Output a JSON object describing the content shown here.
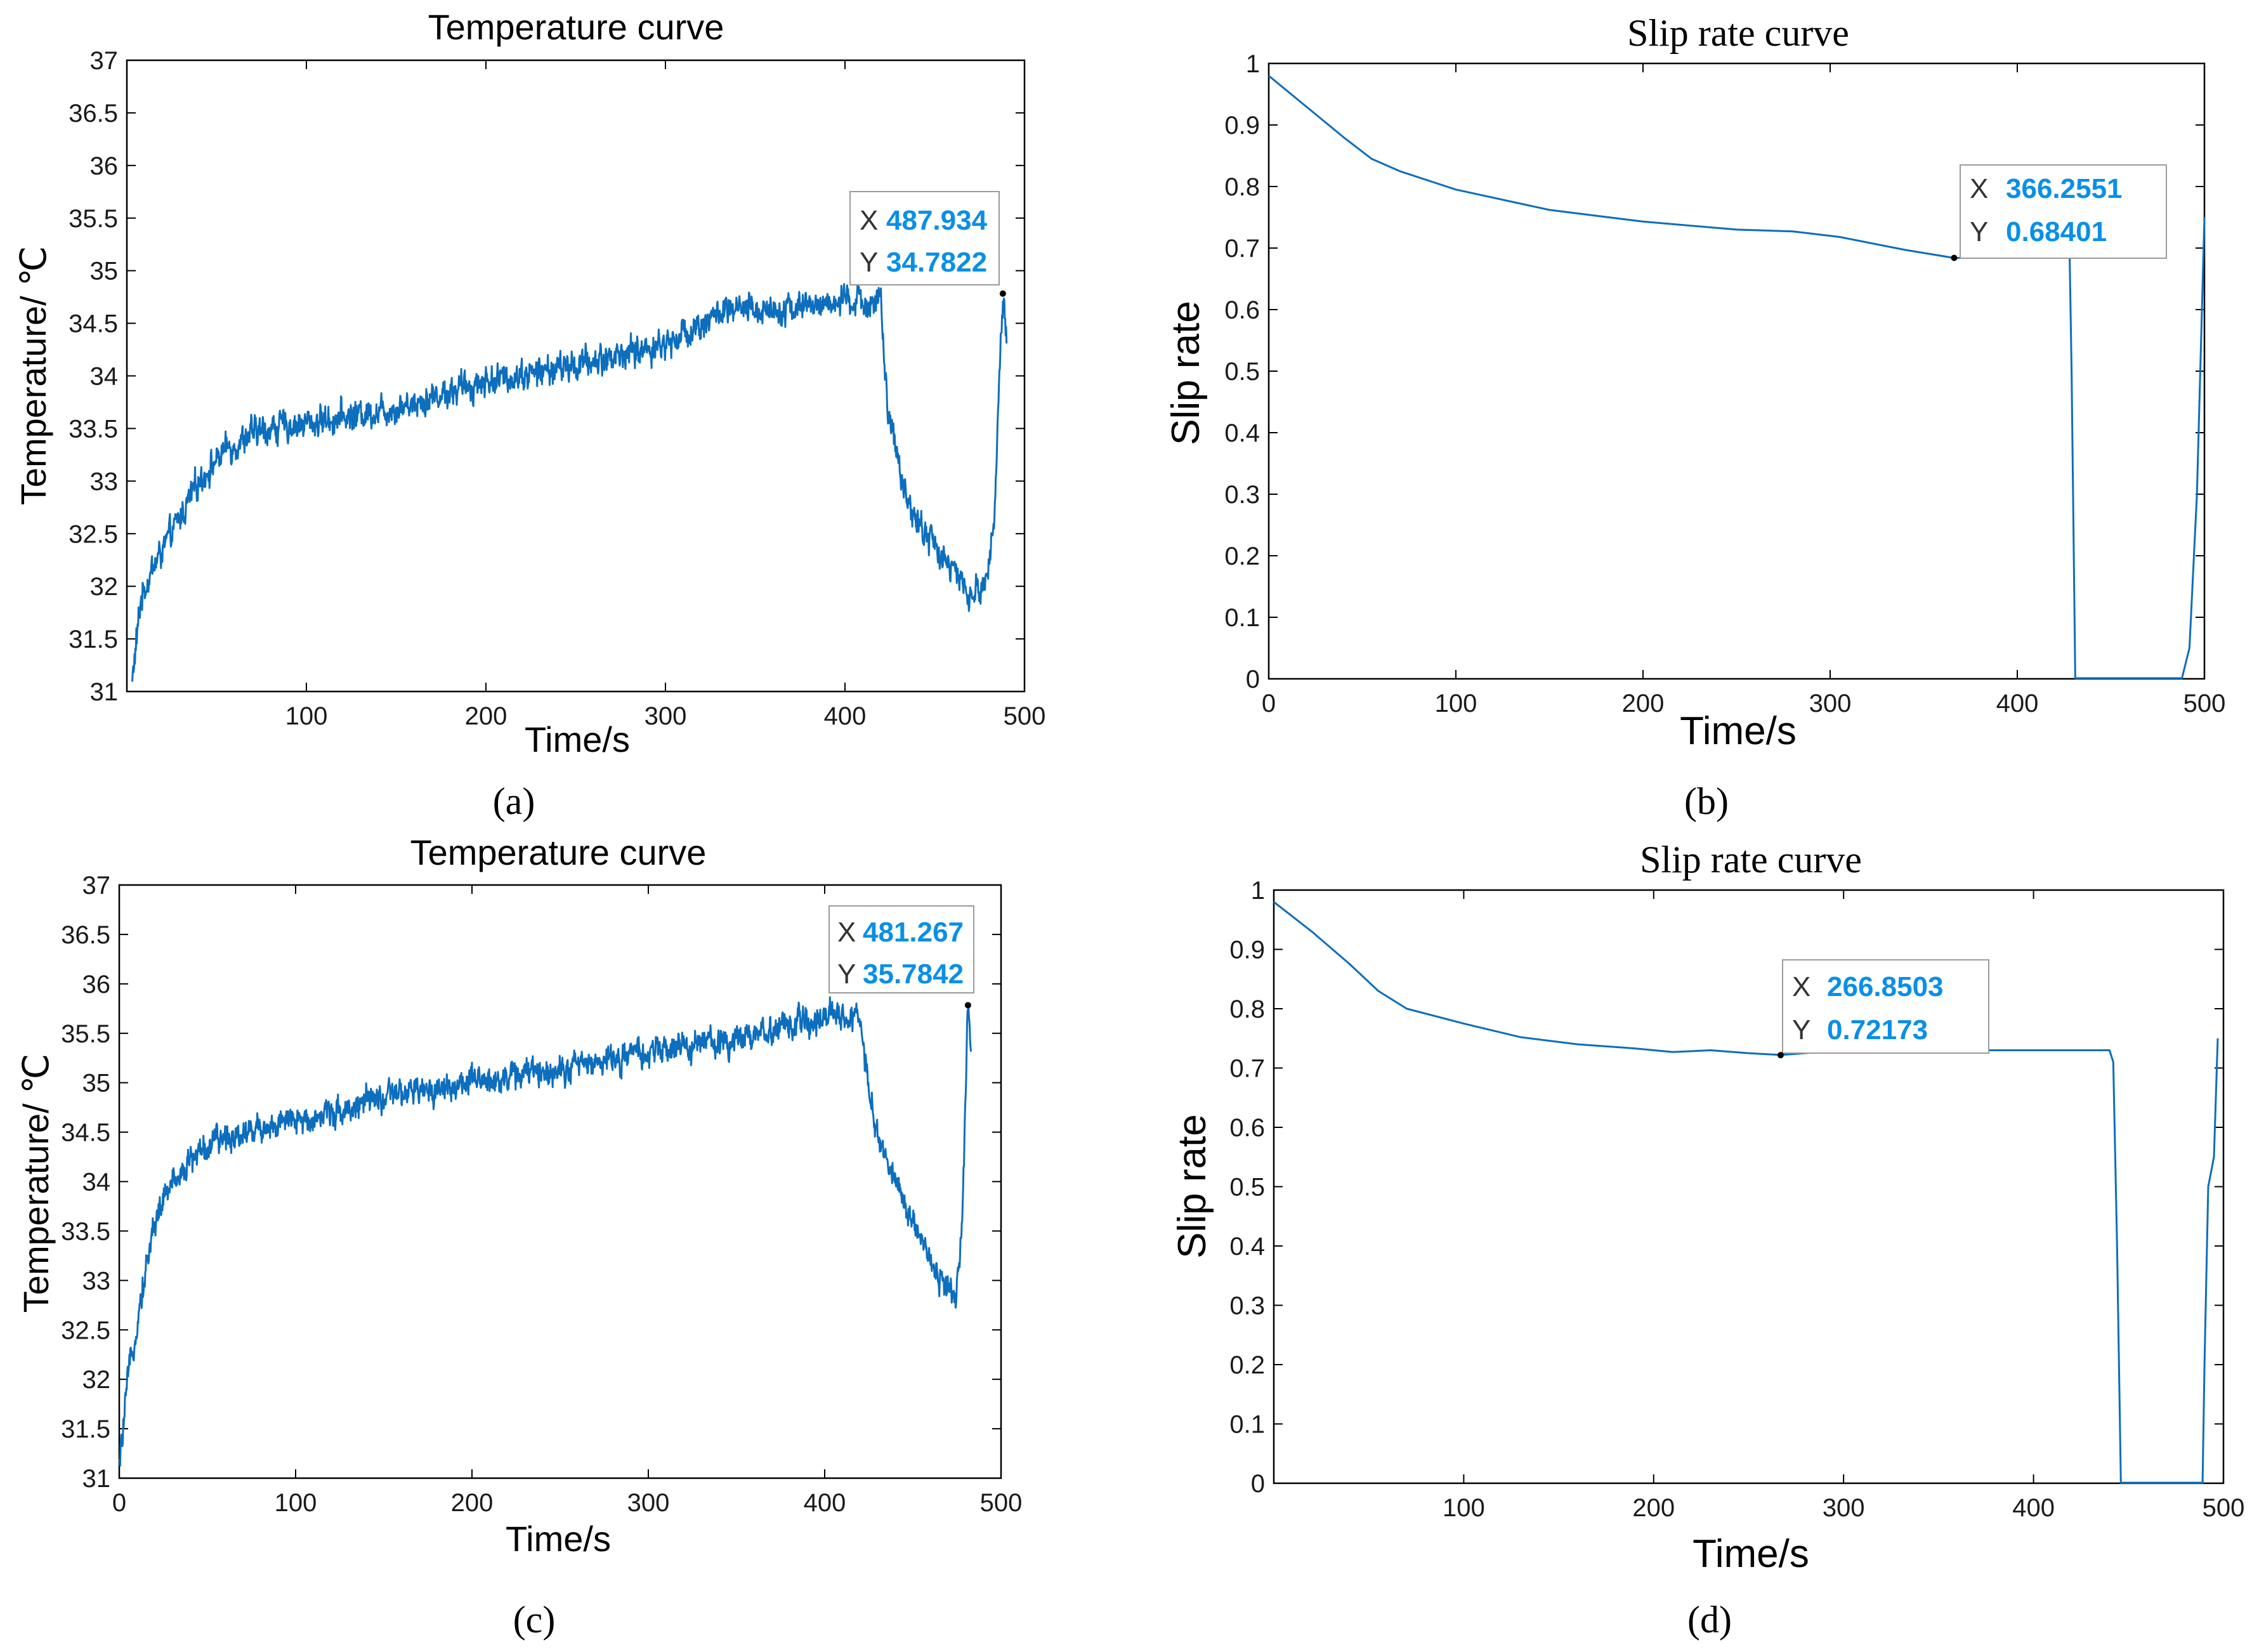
{
  "chart_data": [
    {
      "id": "a",
      "type": "line",
      "title": "Temperature curve",
      "xlabel": "Time/s",
      "ylabel": "Temperature/ ℃",
      "caption": "(a)",
      "xlim": [
        0,
        500
      ],
      "ylim": [
        31,
        37
      ],
      "xticks": [
        100,
        200,
        300,
        400,
        500
      ],
      "yticks": [
        31,
        31.5,
        32,
        32.5,
        33,
        33.5,
        34,
        34.5,
        35,
        35.5,
        36,
        36.5,
        37
      ],
      "x_start": 3,
      "x_end": 490,
      "profile_x": [
        3,
        8,
        15,
        25,
        40,
        55,
        70,
        80,
        100,
        150,
        200,
        250,
        300,
        330,
        370,
        400,
        420,
        424,
        432,
        440,
        450,
        460,
        470,
        478,
        483,
        486,
        488,
        490
      ],
      "profile_y": [
        31.1,
        31.9,
        32.2,
        32.5,
        33.0,
        33.3,
        33.45,
        33.5,
        33.55,
        33.7,
        33.95,
        34.1,
        34.3,
        34.6,
        34.65,
        34.7,
        34.7,
        33.6,
        33.0,
        32.6,
        32.4,
        32.15,
        31.9,
        32.0,
        32.6,
        34.0,
        34.78,
        34.4
      ],
      "noise": 0.12,
      "datatip": {
        "x_label": "X",
        "x_value": "487.934",
        "y_label": "Y",
        "y_value": "34.7822",
        "x": 487.934,
        "y": 34.7822
      }
    },
    {
      "id": "b",
      "type": "line",
      "title": "Slip  rate curve",
      "xlabel": "Time/s",
      "ylabel": "Slip rate",
      "caption": "(b)",
      "xlim": [
        0,
        500
      ],
      "ylim": [
        0,
        1
      ],
      "xticks": [
        0,
        100,
        200,
        300,
        400,
        500
      ],
      "yticks": [
        0,
        0.1,
        0.2,
        0.3,
        0.4,
        0.5,
        0.6,
        0.7,
        0.8,
        0.9,
        1
      ],
      "profile_x": [
        0,
        20,
        40,
        55,
        70,
        100,
        150,
        200,
        250,
        280,
        305,
        340,
        366,
        400,
        428,
        429,
        431,
        432,
        440,
        480,
        488,
        492,
        496,
        500
      ],
      "profile_y": [
        0.98,
        0.93,
        0.88,
        0.845,
        0.825,
        0.795,
        0.762,
        0.743,
        0.73,
        0.727,
        0.718,
        0.697,
        0.684,
        0.684,
        0.684,
        0.5,
        0.001,
        0.001,
        0.001,
        0.001,
        0.001,
        0.05,
        0.3,
        0.75
      ],
      "noise": 0,
      "datatip": {
        "x_label": "X",
        "x_value": "366.2551",
        "y_label": "Y",
        "y_value": "0.68401",
        "x": 366.2551,
        "y": 0.68401
      }
    },
    {
      "id": "c",
      "type": "line",
      "title": "Temperature curve",
      "xlabel": "Time/s",
      "ylabel": "Temperature/ ℃",
      "caption": "(c)",
      "xlim": [
        0,
        500
      ],
      "ylim": [
        31,
        37
      ],
      "xticks": [
        0,
        100,
        200,
        300,
        400,
        500
      ],
      "yticks": [
        31,
        31.5,
        32,
        32.5,
        33,
        33.5,
        34,
        34.5,
        35,
        35.5,
        36,
        36.5,
        37
      ],
      "x_start": 0,
      "x_end": 483,
      "profile_x": [
        0,
        5,
        12,
        20,
        30,
        45,
        60,
        80,
        100,
        150,
        200,
        250,
        300,
        350,
        400,
        415,
        420,
        428,
        440,
        450,
        460,
        470,
        475,
        478,
        481,
        483
      ],
      "profile_y": [
        31.1,
        32.0,
        32.8,
        33.6,
        34.0,
        34.3,
        34.45,
        34.55,
        34.6,
        34.85,
        35.0,
        35.15,
        35.3,
        35.45,
        35.65,
        35.7,
        35.6,
        34.6,
        34.0,
        33.6,
        33.2,
        32.9,
        32.9,
        33.5,
        35.78,
        35.3
      ],
      "noise": 0.12,
      "datatip": {
        "x_label": "X",
        "x_value": "481.267",
        "y_label": "Y",
        "y_value": "35.7842",
        "x": 481.267,
        "y": 35.7842
      }
    },
    {
      "id": "d",
      "type": "line",
      "title": "Slip rate curve",
      "xlabel": "Time/s",
      "ylabel": "Slip rate",
      "caption": "(d)",
      "xlim": [
        0,
        500
      ],
      "ylim": [
        0,
        1
      ],
      "xticks": [
        100,
        200,
        300,
        400,
        500
      ],
      "yticks": [
        0,
        0.1,
        0.2,
        0.3,
        0.4,
        0.5,
        0.6,
        0.7,
        0.8,
        0.9,
        1
      ],
      "profile_x": [
        0,
        20,
        40,
        55,
        70,
        100,
        130,
        160,
        190,
        210,
        230,
        250,
        267,
        300,
        400,
        440,
        442,
        444,
        446,
        450,
        485,
        489,
        490,
        492,
        495,
        497
      ],
      "profile_y": [
        0.98,
        0.93,
        0.875,
        0.83,
        0.8,
        0.775,
        0.752,
        0.74,
        0.733,
        0.727,
        0.73,
        0.725,
        0.722,
        0.73,
        0.73,
        0.73,
        0.71,
        0.4,
        0.001,
        0.001,
        0.001,
        0.001,
        0.2,
        0.5,
        0.55,
        0.75
      ],
      "noise": 0,
      "datatip": {
        "x_label": "X",
        "x_value": "266.8503",
        "y_label": "Y",
        "y_value": "0.72173",
        "x": 266.8503,
        "y": 0.72173
      }
    }
  ]
}
